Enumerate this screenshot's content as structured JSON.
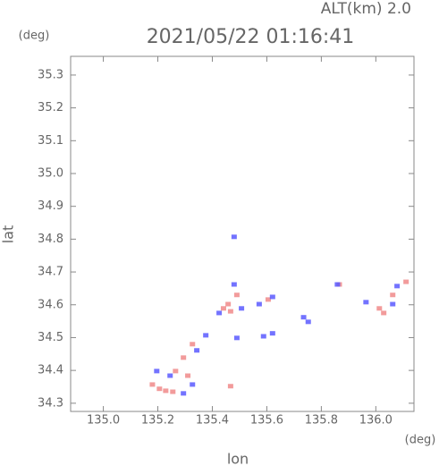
{
  "chart_data": {
    "type": "scatter",
    "title": "2021/05/22 01:16:41",
    "subtitle": "ALT(km) 2.0",
    "x_label": "lon",
    "y_label": "lat",
    "x_unit": "(deg)",
    "y_unit": "(deg)",
    "xlim": [
      134.88,
      136.14
    ],
    "ylim": [
      34.275,
      35.357
    ],
    "xticks": [
      {
        "value": 135.0,
        "label": "135.0"
      },
      135.2,
      135.4,
      135.6,
      135.8,
      {
        "value": 136.0,
        "label": "136.0"
      }
    ],
    "yticks": [
      34.3,
      34.4,
      34.5,
      34.6,
      34.7,
      34.8,
      34.9,
      {
        "value": 35.0,
        "label": "35.0"
      },
      35.1,
      35.2,
      35.3
    ],
    "series": [
      {
        "color": "#f08a8a",
        "x": [
          135.18,
          135.206,
          135.229,
          135.255,
          135.294,
          135.31,
          135.327,
          135.441,
          135.467,
          135.458,
          135.49,
          135.605,
          135.866,
          136.013,
          136.029,
          136.062,
          136.111,
          135.467,
          135.265
        ],
        "y": [
          34.357,
          34.344,
          34.338,
          34.335,
          34.439,
          34.384,
          34.48,
          34.589,
          34.58,
          34.602,
          34.63,
          34.616,
          34.662,
          34.589,
          34.575,
          34.63,
          34.67,
          34.352,
          34.398
        ]
      },
      {
        "color": "#5a5aff",
        "x": [
          135.196,
          135.245,
          135.294,
          135.327,
          135.343,
          135.376,
          135.425,
          135.48,
          135.48,
          135.507,
          135.572,
          135.621,
          135.735,
          135.752,
          135.859,
          135.964,
          136.062,
          136.078,
          135.621,
          135.49,
          135.588
        ],
        "y": [
          34.398,
          34.384,
          34.33,
          34.357,
          34.461,
          34.507,
          34.575,
          34.662,
          34.807,
          34.589,
          34.602,
          34.624,
          34.562,
          34.548,
          34.662,
          34.608,
          34.602,
          34.657,
          34.513,
          34.499,
          34.504
        ]
      }
    ]
  }
}
